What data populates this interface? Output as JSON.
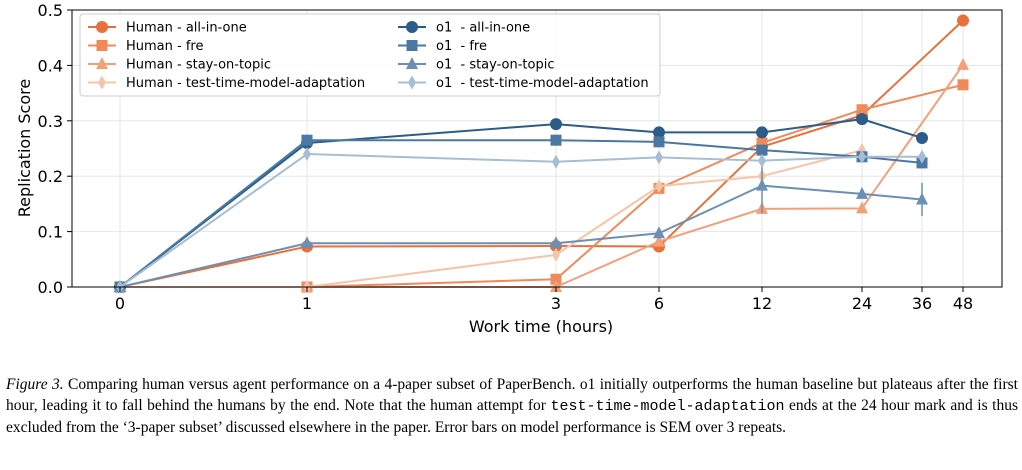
{
  "chart_data": {
    "type": "line",
    "xlabel": "Work time (hours)",
    "ylabel": "Replication Score",
    "x_ticks": [
      "0",
      "1",
      "3",
      "6",
      "12",
      "24",
      "36",
      "48"
    ],
    "ylim": [
      0,
      0.5
    ],
    "y_ticks": [
      "0.0",
      "0.1",
      "0.2",
      "0.3",
      "0.4",
      "0.5"
    ],
    "grid": true,
    "legend_position": "top-left",
    "series": [
      {
        "name": "Human - all-in-one",
        "group": "human",
        "marker": "circle",
        "color": "#e8703a",
        "x": [
          0,
          1,
          3,
          6,
          12,
          24,
          48
        ],
        "y": [
          0.0,
          0.073,
          0.074,
          0.073,
          0.253,
          0.31,
          0.481
        ]
      },
      {
        "name": "Human - fre",
        "group": "human",
        "marker": "square",
        "color": "#f08a5a",
        "x": [
          0,
          1,
          3,
          6,
          12,
          24,
          48
        ],
        "y": [
          0.0,
          0.0,
          0.014,
          0.178,
          0.26,
          0.32,
          0.365
        ]
      },
      {
        "name": "Human - stay-on-topic",
        "group": "human",
        "marker": "triangle",
        "color": "#f2a07a",
        "x": [
          0,
          1,
          3,
          6,
          12,
          24,
          48
        ],
        "y": [
          0.0,
          0.0,
          0.0,
          0.082,
          0.141,
          0.142,
          0.401
        ]
      },
      {
        "name": "Human - test-time-model-adaptation",
        "group": "human",
        "marker": "diamond",
        "color": "#f6c4a8",
        "x": [
          0,
          1,
          3,
          6,
          12,
          24
        ],
        "y": [
          0.0,
          0.0,
          0.058,
          0.182,
          0.2,
          0.247
        ]
      },
      {
        "name": "o1  - all-in-one",
        "group": "o1",
        "marker": "circle",
        "color": "#2b5c8a",
        "x": [
          0,
          1,
          3,
          6,
          12,
          24,
          36
        ],
        "y": [
          0.0,
          0.26,
          0.294,
          0.279,
          0.279,
          0.303,
          0.269
        ]
      },
      {
        "name": "o1  - fre",
        "group": "o1",
        "marker": "square",
        "color": "#4a78a2",
        "x": [
          0,
          1,
          3,
          6,
          12,
          24,
          36
        ],
        "y": [
          0.0,
          0.265,
          0.265,
          0.262,
          0.247,
          0.235,
          0.224
        ]
      },
      {
        "name": "o1  - stay-on-topic",
        "group": "o1",
        "marker": "triangle",
        "color": "#6b8fb5",
        "x": [
          0,
          1,
          3,
          6,
          12,
          24,
          36
        ],
        "y": [
          0.0,
          0.079,
          0.079,
          0.097,
          0.183,
          0.168,
          0.158
        ],
        "err": [
          0,
          0,
          0,
          0,
          0.05,
          0,
          0.03
        ]
      },
      {
        "name": "o1  - test-time-model-adaptation",
        "group": "o1",
        "marker": "diamond",
        "color": "#a7bdd3",
        "x": [
          0,
          1,
          3,
          6,
          12,
          24,
          36
        ],
        "y": [
          0.0,
          0.24,
          0.226,
          0.234,
          0.228,
          0.235,
          0.235
        ],
        "err": [
          0,
          0.01,
          0,
          0,
          0,
          0,
          0
        ]
      }
    ]
  },
  "caption": {
    "label": "Figure 3.",
    "text1": " Comparing human versus agent performance on a 4-paper subset of PaperBench. o1 initially outperforms the human baseline but plateaus after the first hour, leading it to fall behind the humans by the end. Note that the human attempt for ",
    "code": "test-time-model-adaptation",
    "text2": " ends at the 24 hour mark and is thus excluded from the ‘3-paper subset’ discussed elsewhere in the paper. Error bars on model performance is SEM over 3 repeats."
  }
}
